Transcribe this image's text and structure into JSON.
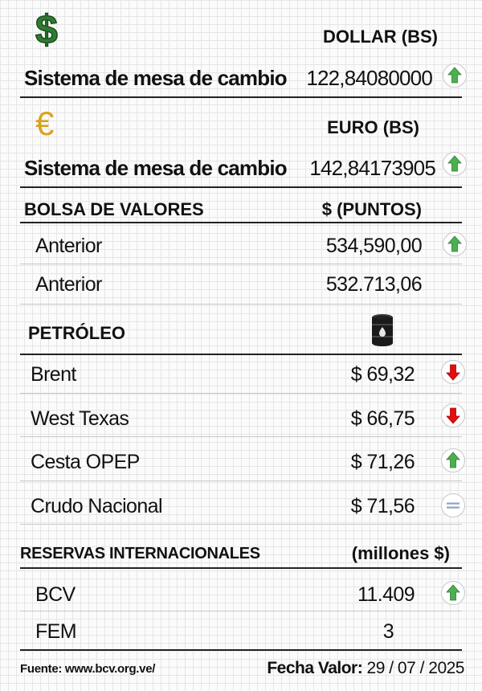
{
  "dollar": {
    "icon": "dollar-sign-icon",
    "symbol": "$",
    "header": "DOLLAR (BS)",
    "label": "Sistema de mesa de cambio",
    "value": "122,84080000",
    "trend": "up"
  },
  "euro": {
    "icon": "euro-sign-icon",
    "symbol": "€",
    "header": "EURO (BS)",
    "label": "Sistema de mesa de cambio",
    "value": "142,84173905",
    "trend": "up"
  },
  "bolsa": {
    "title": "BOLSA DE VALORES",
    "unit": "$ (PUNTOS)",
    "rows": [
      {
        "label": "Anterior",
        "value": "534,590,00",
        "trend": "up"
      },
      {
        "label": "Anterior",
        "value": "532.713,06",
        "trend": "none"
      }
    ]
  },
  "petroleo": {
    "title": "PETRÓLEO",
    "icon": "oil-barrel-icon",
    "rows": [
      {
        "label": "Brent",
        "value": "$ 69,32",
        "trend": "down"
      },
      {
        "label": "West Texas",
        "value": "$ 66,75",
        "trend": "down"
      },
      {
        "label": "Cesta OPEP",
        "value": "$ 71,26",
        "trend": "up"
      },
      {
        "label": "Crudo Nacional",
        "value": "$ 71,56",
        "trend": "equal"
      }
    ]
  },
  "reservas": {
    "title": "RESERVAS INTERNACIONALES",
    "unit": "(millones $)",
    "rows": [
      {
        "label": "BCV",
        "value": "11.409",
        "trend": "up"
      },
      {
        "label": "FEM",
        "value": "3",
        "trend": "none"
      }
    ]
  },
  "footer": {
    "source": "Fuente: www.bcv.org.ve/",
    "date_label": "Fecha Valor:",
    "date_value": "29 / 07 / 2025"
  },
  "colors": {
    "up": "#4caf50",
    "down": "#e01010",
    "equal": "#8fa3c7",
    "dollar": "#2e7d32",
    "euro": "#d9a21c"
  }
}
